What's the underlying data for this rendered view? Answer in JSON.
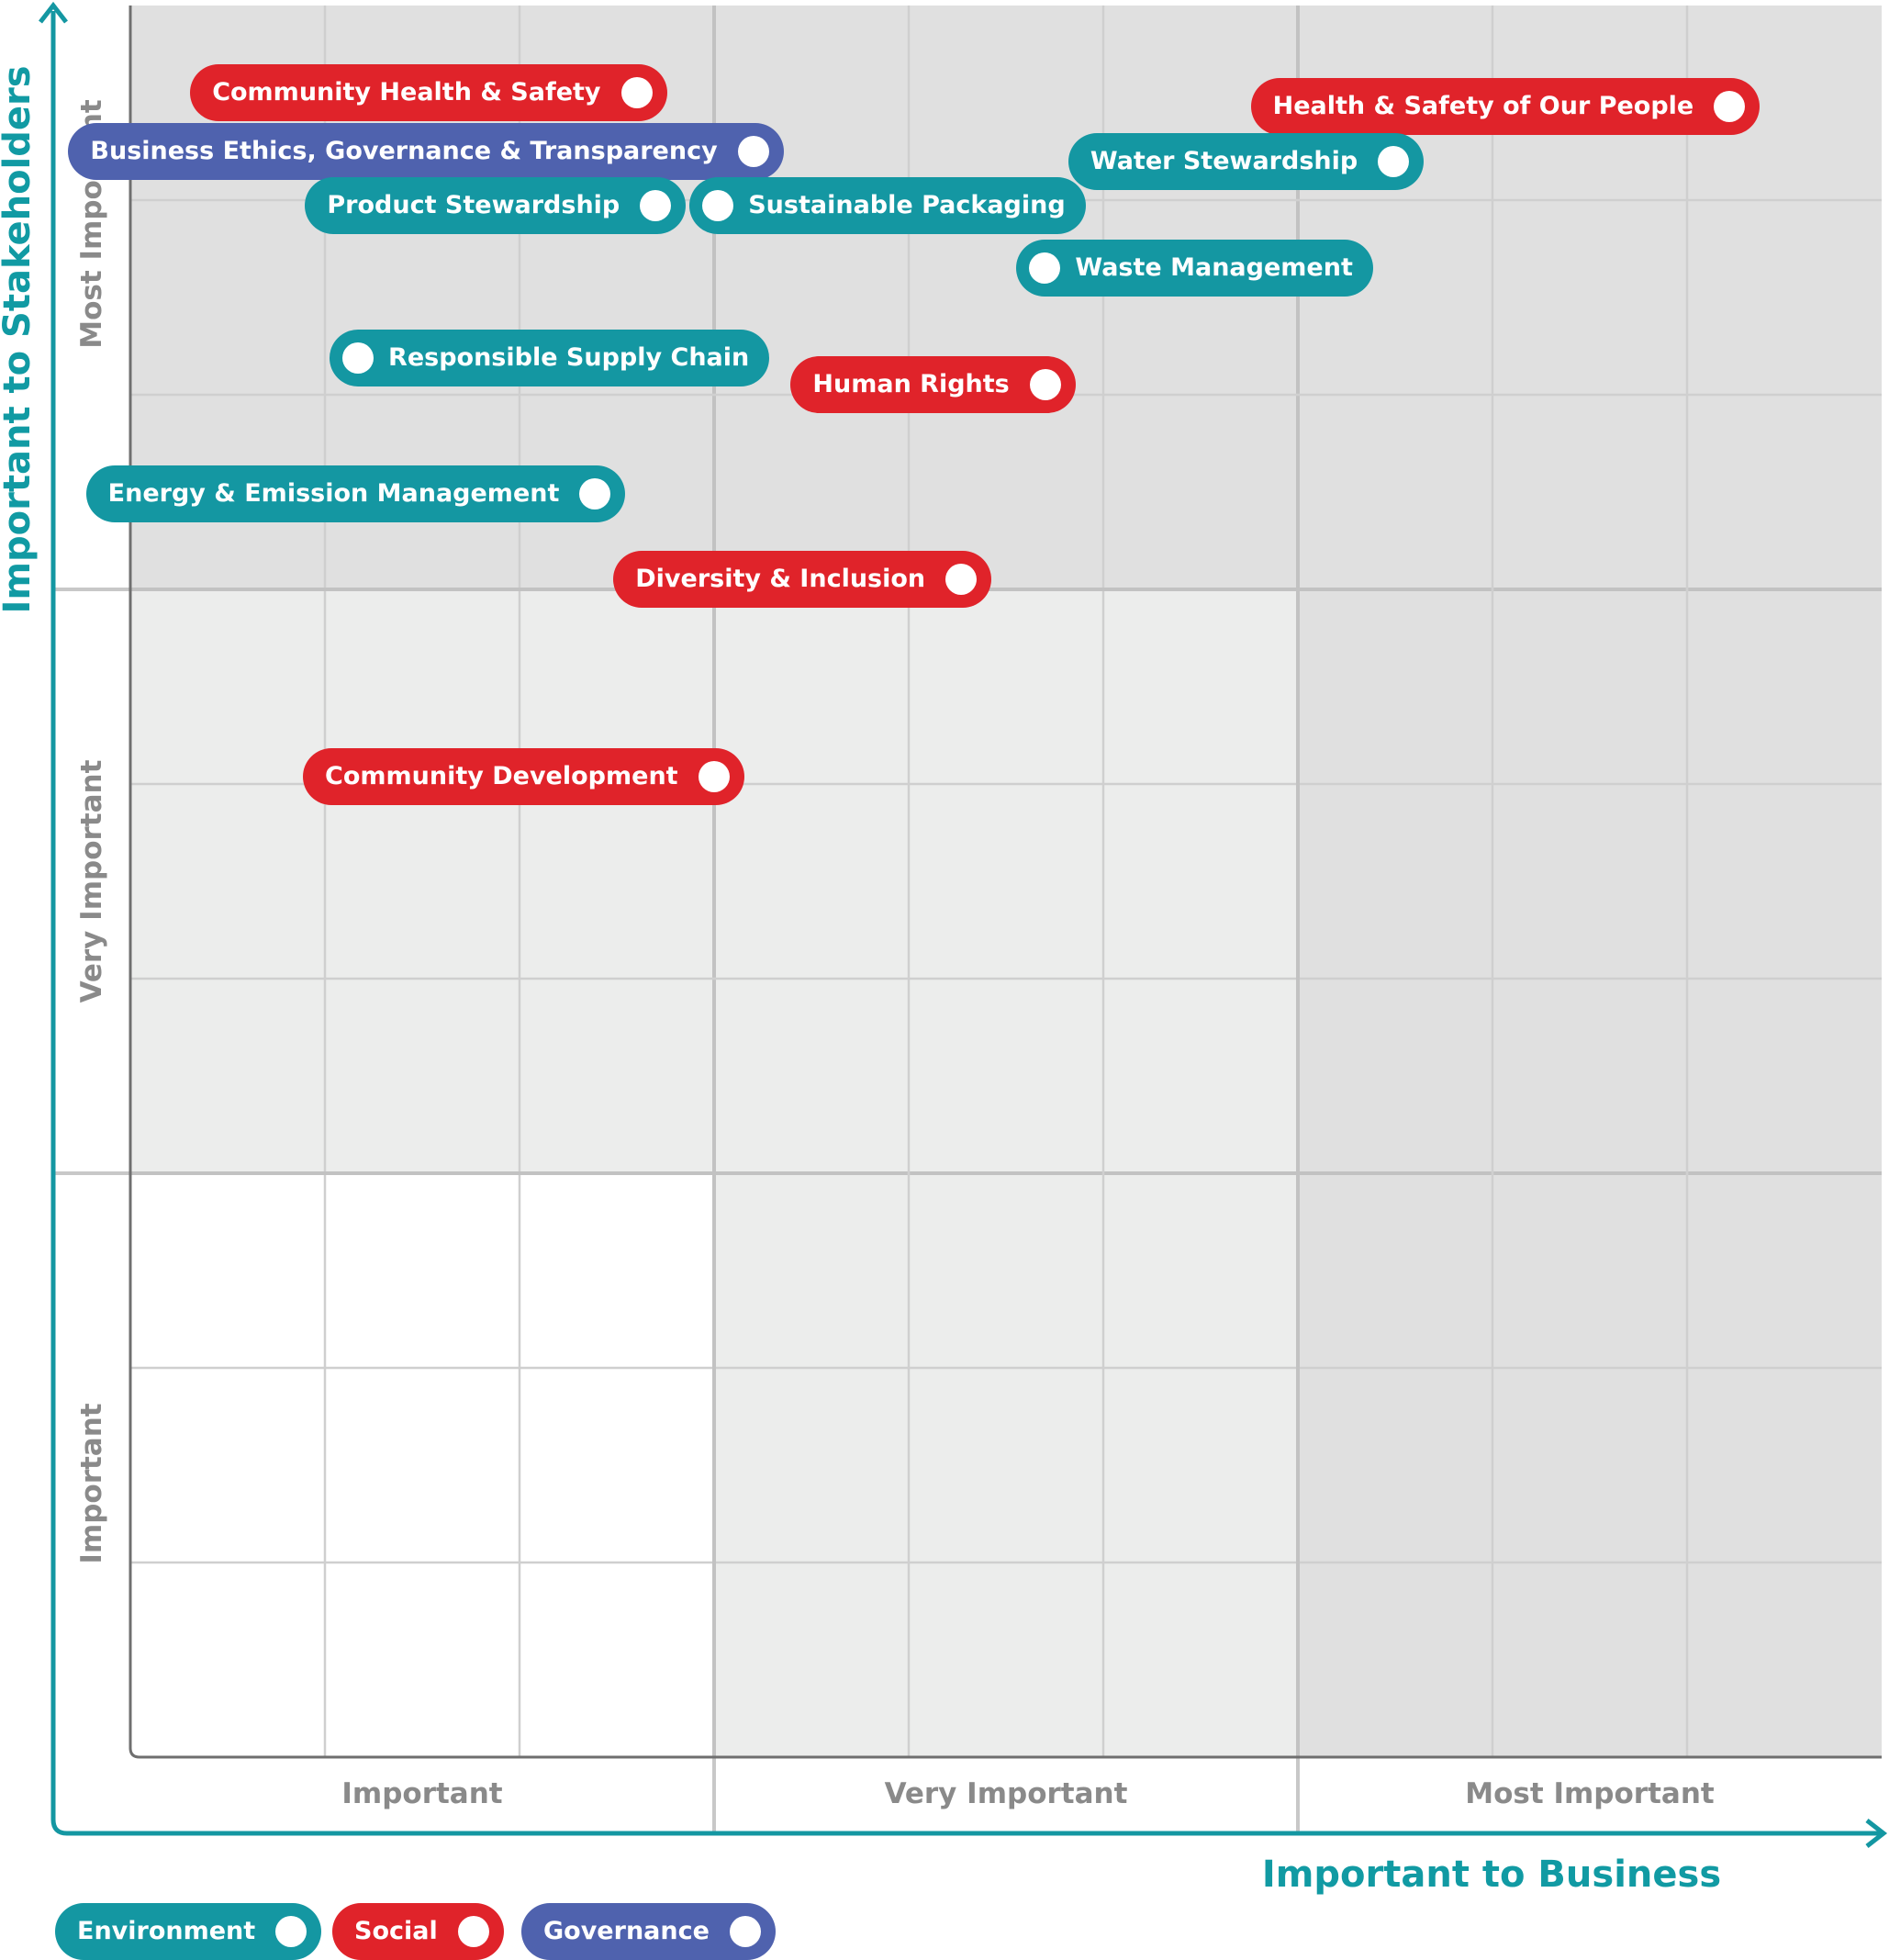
{
  "chart_data": {
    "type": "scatter",
    "title": "",
    "xlabel": "Important to Business",
    "ylabel": "Important to Stakeholders",
    "x_bands": [
      "Important",
      "Very Important",
      "Most Important"
    ],
    "y_bands": [
      "Important",
      "Very Important",
      "Most Important"
    ],
    "xlim": [
      0,
      9
    ],
    "ylim": [
      0,
      9
    ],
    "grid": true,
    "legend_position": "bottom-left",
    "colors": {
      "Environment": "#1497a2",
      "Social": "#e0232a",
      "Governance": "#4f62ae"
    },
    "categories": [
      "Environment",
      "Social",
      "Governance"
    ],
    "points": [
      {
        "label": "Community Health & Safety",
        "category": "Social",
        "x": 2.6,
        "y": 8.55,
        "dot": "right"
      },
      {
        "label": "Business Ethics, Governance & Transparency",
        "category": "Governance",
        "x": 3.2,
        "y": 8.25,
        "dot": "right"
      },
      {
        "label": "Product Stewardship",
        "category": "Environment",
        "x": 2.7,
        "y": 7.97,
        "dot": "right"
      },
      {
        "label": "Sustainable Packaging",
        "category": "Environment",
        "x": 3.02,
        "y": 7.97,
        "dot": "left"
      },
      {
        "label": "Health & Safety of Our People",
        "category": "Social",
        "x": 8.22,
        "y": 8.48,
        "dot": "right"
      },
      {
        "label": "Water Stewardship",
        "category": "Environment",
        "x": 6.49,
        "y": 8.2,
        "dot": "right"
      },
      {
        "label": "Waste Management",
        "category": "Environment",
        "x": 4.7,
        "y": 7.65,
        "dot": "left"
      },
      {
        "label": "Responsible Supply Chain",
        "category": "Environment",
        "x": 1.17,
        "y": 7.19,
        "dot": "left"
      },
      {
        "label": "Human Rights",
        "category": "Social",
        "x": 4.7,
        "y": 7.05,
        "dot": "right"
      },
      {
        "label": "Energy & Emission Management",
        "category": "Environment",
        "x": 2.39,
        "y": 6.49,
        "dot": "right"
      },
      {
        "label": "Diversity & Inclusion",
        "category": "Social",
        "x": 4.27,
        "y": 6.05,
        "dot": "right"
      },
      {
        "label": "Community Development",
        "category": "Social",
        "x": 3.0,
        "y": 5.04,
        "dot": "right"
      }
    ]
  }
}
